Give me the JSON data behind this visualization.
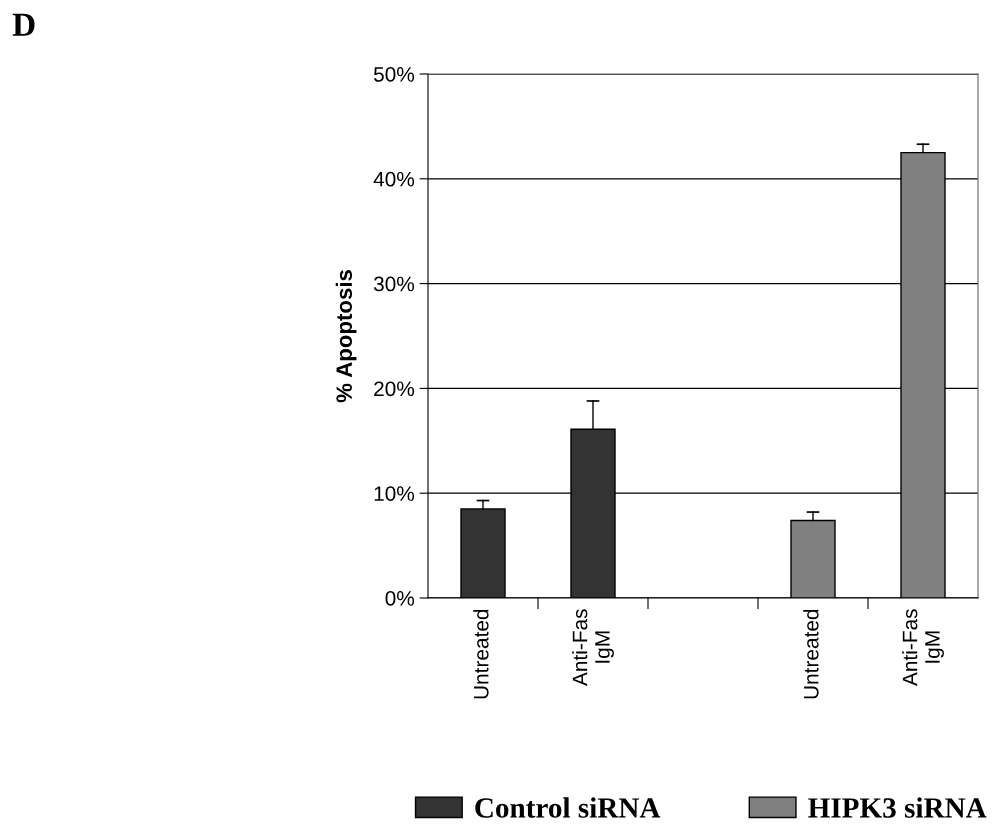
{
  "chart_data": {
    "type": "bar",
    "ylabel": "% Apoptosis",
    "categories": [
      "Untreated",
      "Anti-Fas\nIgM",
      null,
      "Untreated",
      "Anti-Fas\nIgM"
    ],
    "series": [
      {
        "name": "Control siRNA",
        "color": "#333333",
        "values": [
          8.5,
          16.1,
          null,
          null,
          null
        ],
        "errors": [
          [
            8.5,
            9.3
          ],
          [
            16.1,
            18.8
          ],
          null,
          null,
          null
        ]
      },
      {
        "name": "HIPK3 siRNA",
        "color": "#808080",
        "values": [
          null,
          null,
          null,
          7.4,
          42.5
        ],
        "errors": [
          null,
          null,
          null,
          [
            7.4,
            8.2
          ],
          [
            42.5,
            43.3
          ]
        ]
      }
    ],
    "ylim": [
      0,
      50
    ],
    "yticks": [
      {
        "value": 0,
        "label": "0%"
      },
      {
        "value": 10,
        "label": "10%"
      },
      {
        "value": 20,
        "label": "20%"
      },
      {
        "value": 30,
        "label": "30%"
      },
      {
        "value": 40,
        "label": "40%"
      },
      {
        "value": 50,
        "label": "50%"
      }
    ],
    "grid": "y",
    "legend": "bottom",
    "annotations": [
      "D"
    ]
  }
}
